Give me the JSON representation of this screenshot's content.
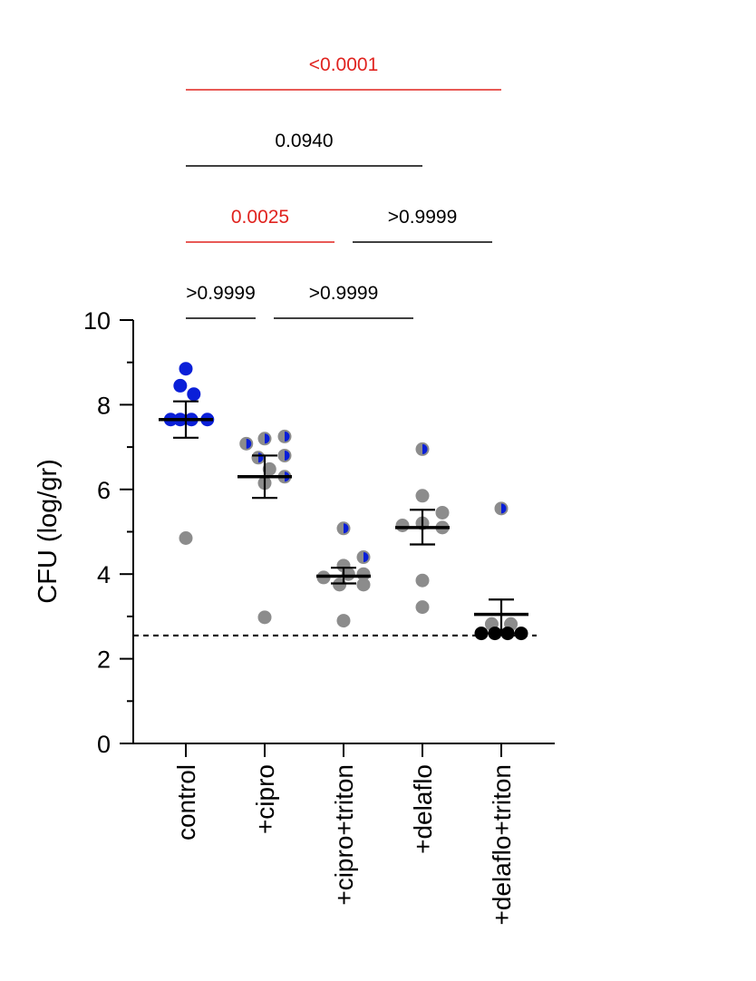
{
  "chart_data": {
    "type": "scatter",
    "ylabel": "CFU (log/gr)",
    "xlabel": "",
    "title": "",
    "ylim": [
      0,
      10
    ],
    "yticks": [
      "0",
      "2",
      "4",
      "6",
      "8",
      "10"
    ],
    "categories": [
      "control",
      "+cipro",
      "+cipro+triton",
      "+delaflo",
      "+delaflo+triton"
    ],
    "detection_limit": 2.55,
    "colors": {
      "blue": "#0a1fd8",
      "gray": "#8c8c8c",
      "black": "#000000",
      "significant": "#e0231f",
      "nonsignificant": "#000000"
    },
    "groups": [
      {
        "category": "control",
        "mean": 7.65,
        "sem_low": 7.22,
        "sem_high": 8.08,
        "points": [
          {
            "x": 0.0,
            "y": 8.85,
            "style": "blue"
          },
          {
            "x": -0.07,
            "y": 8.45,
            "style": "blue"
          },
          {
            "x": 0.1,
            "y": 8.25,
            "style": "blue"
          },
          {
            "x": -0.19,
            "y": 7.65,
            "style": "blue"
          },
          {
            "x": -0.07,
            "y": 7.65,
            "style": "blue"
          },
          {
            "x": 0.07,
            "y": 7.65,
            "style": "blue"
          },
          {
            "x": 0.27,
            "y": 7.65,
            "style": "blue"
          },
          {
            "x": 0.0,
            "y": 4.85,
            "style": "gray"
          }
        ]
      },
      {
        "category": "+cipro",
        "mean": 6.3,
        "sem_low": 5.8,
        "sem_high": 6.8,
        "points": [
          {
            "x": -0.23,
            "y": 7.08,
            "style": "half"
          },
          {
            "x": 0.0,
            "y": 7.2,
            "style": "half"
          },
          {
            "x": 0.25,
            "y": 7.25,
            "style": "half"
          },
          {
            "x": -0.08,
            "y": 6.75,
            "style": "half"
          },
          {
            "x": 0.25,
            "y": 6.8,
            "style": "half"
          },
          {
            "x": 0.06,
            "y": 6.48,
            "style": "gray"
          },
          {
            "x": 0.25,
            "y": 6.3,
            "style": "half"
          },
          {
            "x": 0.0,
            "y": 6.15,
            "style": "gray"
          },
          {
            "x": 0.0,
            "y": 2.98,
            "style": "gray"
          }
        ]
      },
      {
        "category": "+cipro+triton",
        "mean": 3.95,
        "sem_low": 3.78,
        "sem_high": 4.15,
        "points": [
          {
            "x": 0.0,
            "y": 5.08,
            "style": "half"
          },
          {
            "x": 0.25,
            "y": 4.4,
            "style": "half"
          },
          {
            "x": 0.0,
            "y": 4.2,
            "style": "gray"
          },
          {
            "x": -0.25,
            "y": 3.92,
            "style": "gray"
          },
          {
            "x": 0.06,
            "y": 4.0,
            "style": "gray"
          },
          {
            "x": 0.25,
            "y": 4.0,
            "style": "gray"
          },
          {
            "x": -0.05,
            "y": 3.75,
            "style": "gray"
          },
          {
            "x": 0.25,
            "y": 3.75,
            "style": "gray"
          },
          {
            "x": 0.0,
            "y": 2.9,
            "style": "gray"
          }
        ]
      },
      {
        "category": "+delaflo",
        "mean": 5.1,
        "sem_low": 4.7,
        "sem_high": 5.52,
        "points": [
          {
            "x": 0.0,
            "y": 6.95,
            "style": "half"
          },
          {
            "x": 0.0,
            "y": 5.85,
            "style": "gray"
          },
          {
            "x": 0.25,
            "y": 5.45,
            "style": "gray"
          },
          {
            "x": -0.25,
            "y": 5.15,
            "style": "gray"
          },
          {
            "x": 0.0,
            "y": 5.2,
            "style": "gray"
          },
          {
            "x": 0.25,
            "y": 5.1,
            "style": "gray"
          },
          {
            "x": 0.0,
            "y": 3.85,
            "style": "gray"
          },
          {
            "x": 0.0,
            "y": 3.22,
            "style": "gray"
          }
        ]
      },
      {
        "category": "+delaflo+triton",
        "mean": 3.05,
        "sem_low": 2.65,
        "sem_high": 3.4,
        "points": [
          {
            "x": 0.0,
            "y": 5.55,
            "style": "half"
          },
          {
            "x": -0.12,
            "y": 2.82,
            "style": "gray"
          },
          {
            "x": 0.12,
            "y": 2.82,
            "style": "gray"
          },
          {
            "x": -0.25,
            "y": 2.6,
            "style": "black"
          },
          {
            "x": -0.08,
            "y": 2.6,
            "style": "black"
          },
          {
            "x": 0.08,
            "y": 2.6,
            "style": "black"
          },
          {
            "x": 0.25,
            "y": 2.6,
            "style": "black"
          }
        ]
      }
    ],
    "comparisons": [
      {
        "from": 0,
        "to": 1,
        "label": ">0.9999",
        "significant": false,
        "level": 0
      },
      {
        "from": 1,
        "to": 3,
        "label": ">0.9999",
        "significant": false,
        "level": 0
      },
      {
        "from": 0,
        "to": 2,
        "label": "0.0025",
        "significant": true,
        "level": 1
      },
      {
        "from": 2,
        "to": 4,
        "label": ">0.9999",
        "significant": false,
        "level": 1
      },
      {
        "from": 0,
        "to": 3,
        "label": "0.0940",
        "significant": false,
        "level": 2
      },
      {
        "from": 0,
        "to": 4,
        "label": "<0.0001",
        "significant": true,
        "level": 3
      }
    ]
  }
}
